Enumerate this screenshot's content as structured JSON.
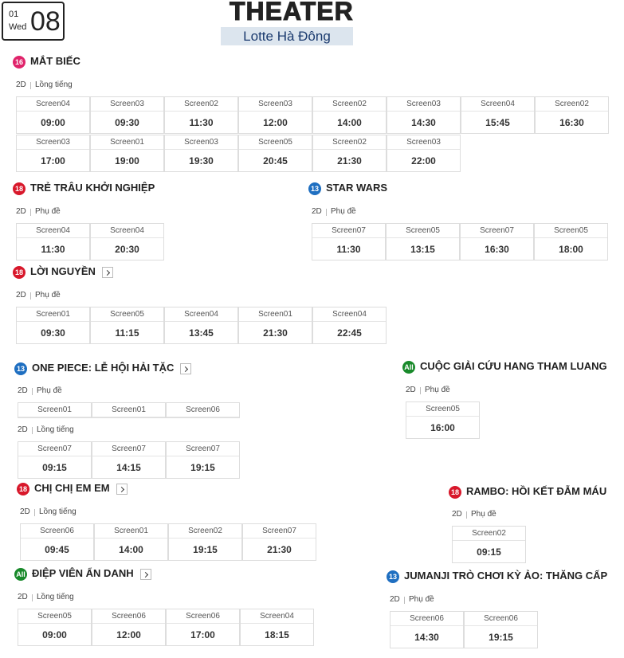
{
  "date": {
    "month": "01",
    "weekday": "Wed",
    "day": "08"
  },
  "header": {
    "title": "THEATER",
    "subtitle": "Lotte Hà Đông"
  },
  "movies": [
    {
      "rating": "16",
      "title": "MẮT BIẾC",
      "formats": [
        {
          "type": "2D",
          "lang": "Lồng tiếng",
          "shows": [
            {
              "screen": "Screen04",
              "time": "09:00"
            },
            {
              "screen": "Screen03",
              "time": "09:30"
            },
            {
              "screen": "Screen02",
              "time": "11:30"
            },
            {
              "screen": "Screen03",
              "time": "12:00"
            },
            {
              "screen": "Screen02",
              "time": "14:00"
            },
            {
              "screen": "Screen03",
              "time": "14:30"
            },
            {
              "screen": "Screen04",
              "time": "15:45"
            },
            {
              "screen": "Screen02",
              "time": "16:30"
            },
            {
              "screen": "Screen03",
              "time": "17:00"
            },
            {
              "screen": "Screen01",
              "time": "19:00"
            },
            {
              "screen": "Screen03",
              "time": "19:30"
            },
            {
              "screen": "Screen05",
              "time": "20:45"
            },
            {
              "screen": "Screen02",
              "time": "21:30"
            },
            {
              "screen": "Screen03",
              "time": "22:00"
            }
          ]
        }
      ]
    },
    {
      "rating": "18",
      "title": "TRẺ TRÂU KHỞI NGHIỆP",
      "formats": [
        {
          "type": "2D",
          "lang": "Phụ đề",
          "shows": [
            {
              "screen": "Screen04",
              "time": "11:30"
            },
            {
              "screen": "Screen04",
              "time": "20:30"
            }
          ]
        }
      ]
    },
    {
      "rating": "13",
      "title": "STAR WARS",
      "formats": [
        {
          "type": "2D",
          "lang": "Phụ đề",
          "shows": [
            {
              "screen": "Screen07",
              "time": "11:30"
            },
            {
              "screen": "Screen05",
              "time": "13:15"
            },
            {
              "screen": "Screen07",
              "time": "16:30"
            },
            {
              "screen": "Screen05",
              "time": "18:00"
            }
          ]
        }
      ]
    },
    {
      "rating": "18",
      "title": "LỜI NGUYỀN",
      "formats": [
        {
          "type": "2D",
          "lang": "Phụ đề",
          "shows": [
            {
              "screen": "Screen01",
              "time": "09:30"
            },
            {
              "screen": "Screen05",
              "time": "11:15"
            },
            {
              "screen": "Screen04",
              "time": "13:45"
            },
            {
              "screen": "Screen01",
              "time": "21:30"
            },
            {
              "screen": "Screen04",
              "time": "22:45"
            }
          ]
        }
      ]
    },
    {
      "rating": "13",
      "title": "ONE PIECE: LỄ HỘI HẢI TẶC",
      "formats": [
        {
          "type": "2D",
          "lang": "Phụ đề",
          "shows": [
            {
              "screen": "Screen01"
            },
            {
              "screen": "Screen01"
            },
            {
              "screen": "Screen06"
            }
          ]
        },
        {
          "type": "2D",
          "lang": "Lồng tiếng",
          "shows": [
            {
              "screen": "Screen07",
              "time": "09:15"
            },
            {
              "screen": "Screen07",
              "time": "14:15"
            },
            {
              "screen": "Screen07",
              "time": "19:15"
            }
          ]
        }
      ]
    },
    {
      "rating": "All",
      "title": "CUỘC GIẢI CỨU HANG THAM LUANG",
      "formats": [
        {
          "type": "2D",
          "lang": "Phụ đề",
          "shows": [
            {
              "screen": "Screen05",
              "time": "16:00"
            }
          ]
        }
      ]
    },
    {
      "rating": "18",
      "title": "CHỊ CHỊ EM EM",
      "formats": [
        {
          "type": "2D",
          "lang": "Lồng tiếng",
          "shows": [
            {
              "screen": "Screen06",
              "time": "09:45"
            },
            {
              "screen": "Screen01",
              "time": "14:00"
            },
            {
              "screen": "Screen02",
              "time": "19:15"
            },
            {
              "screen": "Screen07",
              "time": "21:30"
            }
          ]
        }
      ]
    },
    {
      "rating": "18",
      "title": "RAMBO: HỒI KẾT ĐẪM MÁU",
      "formats": [
        {
          "type": "2D",
          "lang": "Phụ đề",
          "shows": [
            {
              "screen": "Screen02",
              "time": "09:15"
            }
          ]
        }
      ]
    },
    {
      "rating": "All",
      "title": "ĐIỆP VIÊN ẨN DANH",
      "formats": [
        {
          "type": "2D",
          "lang": "Lồng tiếng",
          "shows": [
            {
              "screen": "Screen05",
              "time": "09:00"
            },
            {
              "screen": "Screen06",
              "time": "12:00"
            },
            {
              "screen": "Screen06",
              "time": "17:00"
            },
            {
              "screen": "Screen04",
              "time": "18:15"
            }
          ]
        }
      ]
    },
    {
      "rating": "13",
      "title": "JUMANJI TRÒ CHƠI KỲ ẢO: THĂNG CẤP",
      "formats": [
        {
          "type": "2D",
          "lang": "Phụ đề",
          "shows": [
            {
              "screen": "Screen06",
              "time": "14:30"
            },
            {
              "screen": "Screen06",
              "time": "19:15"
            }
          ]
        }
      ]
    }
  ]
}
